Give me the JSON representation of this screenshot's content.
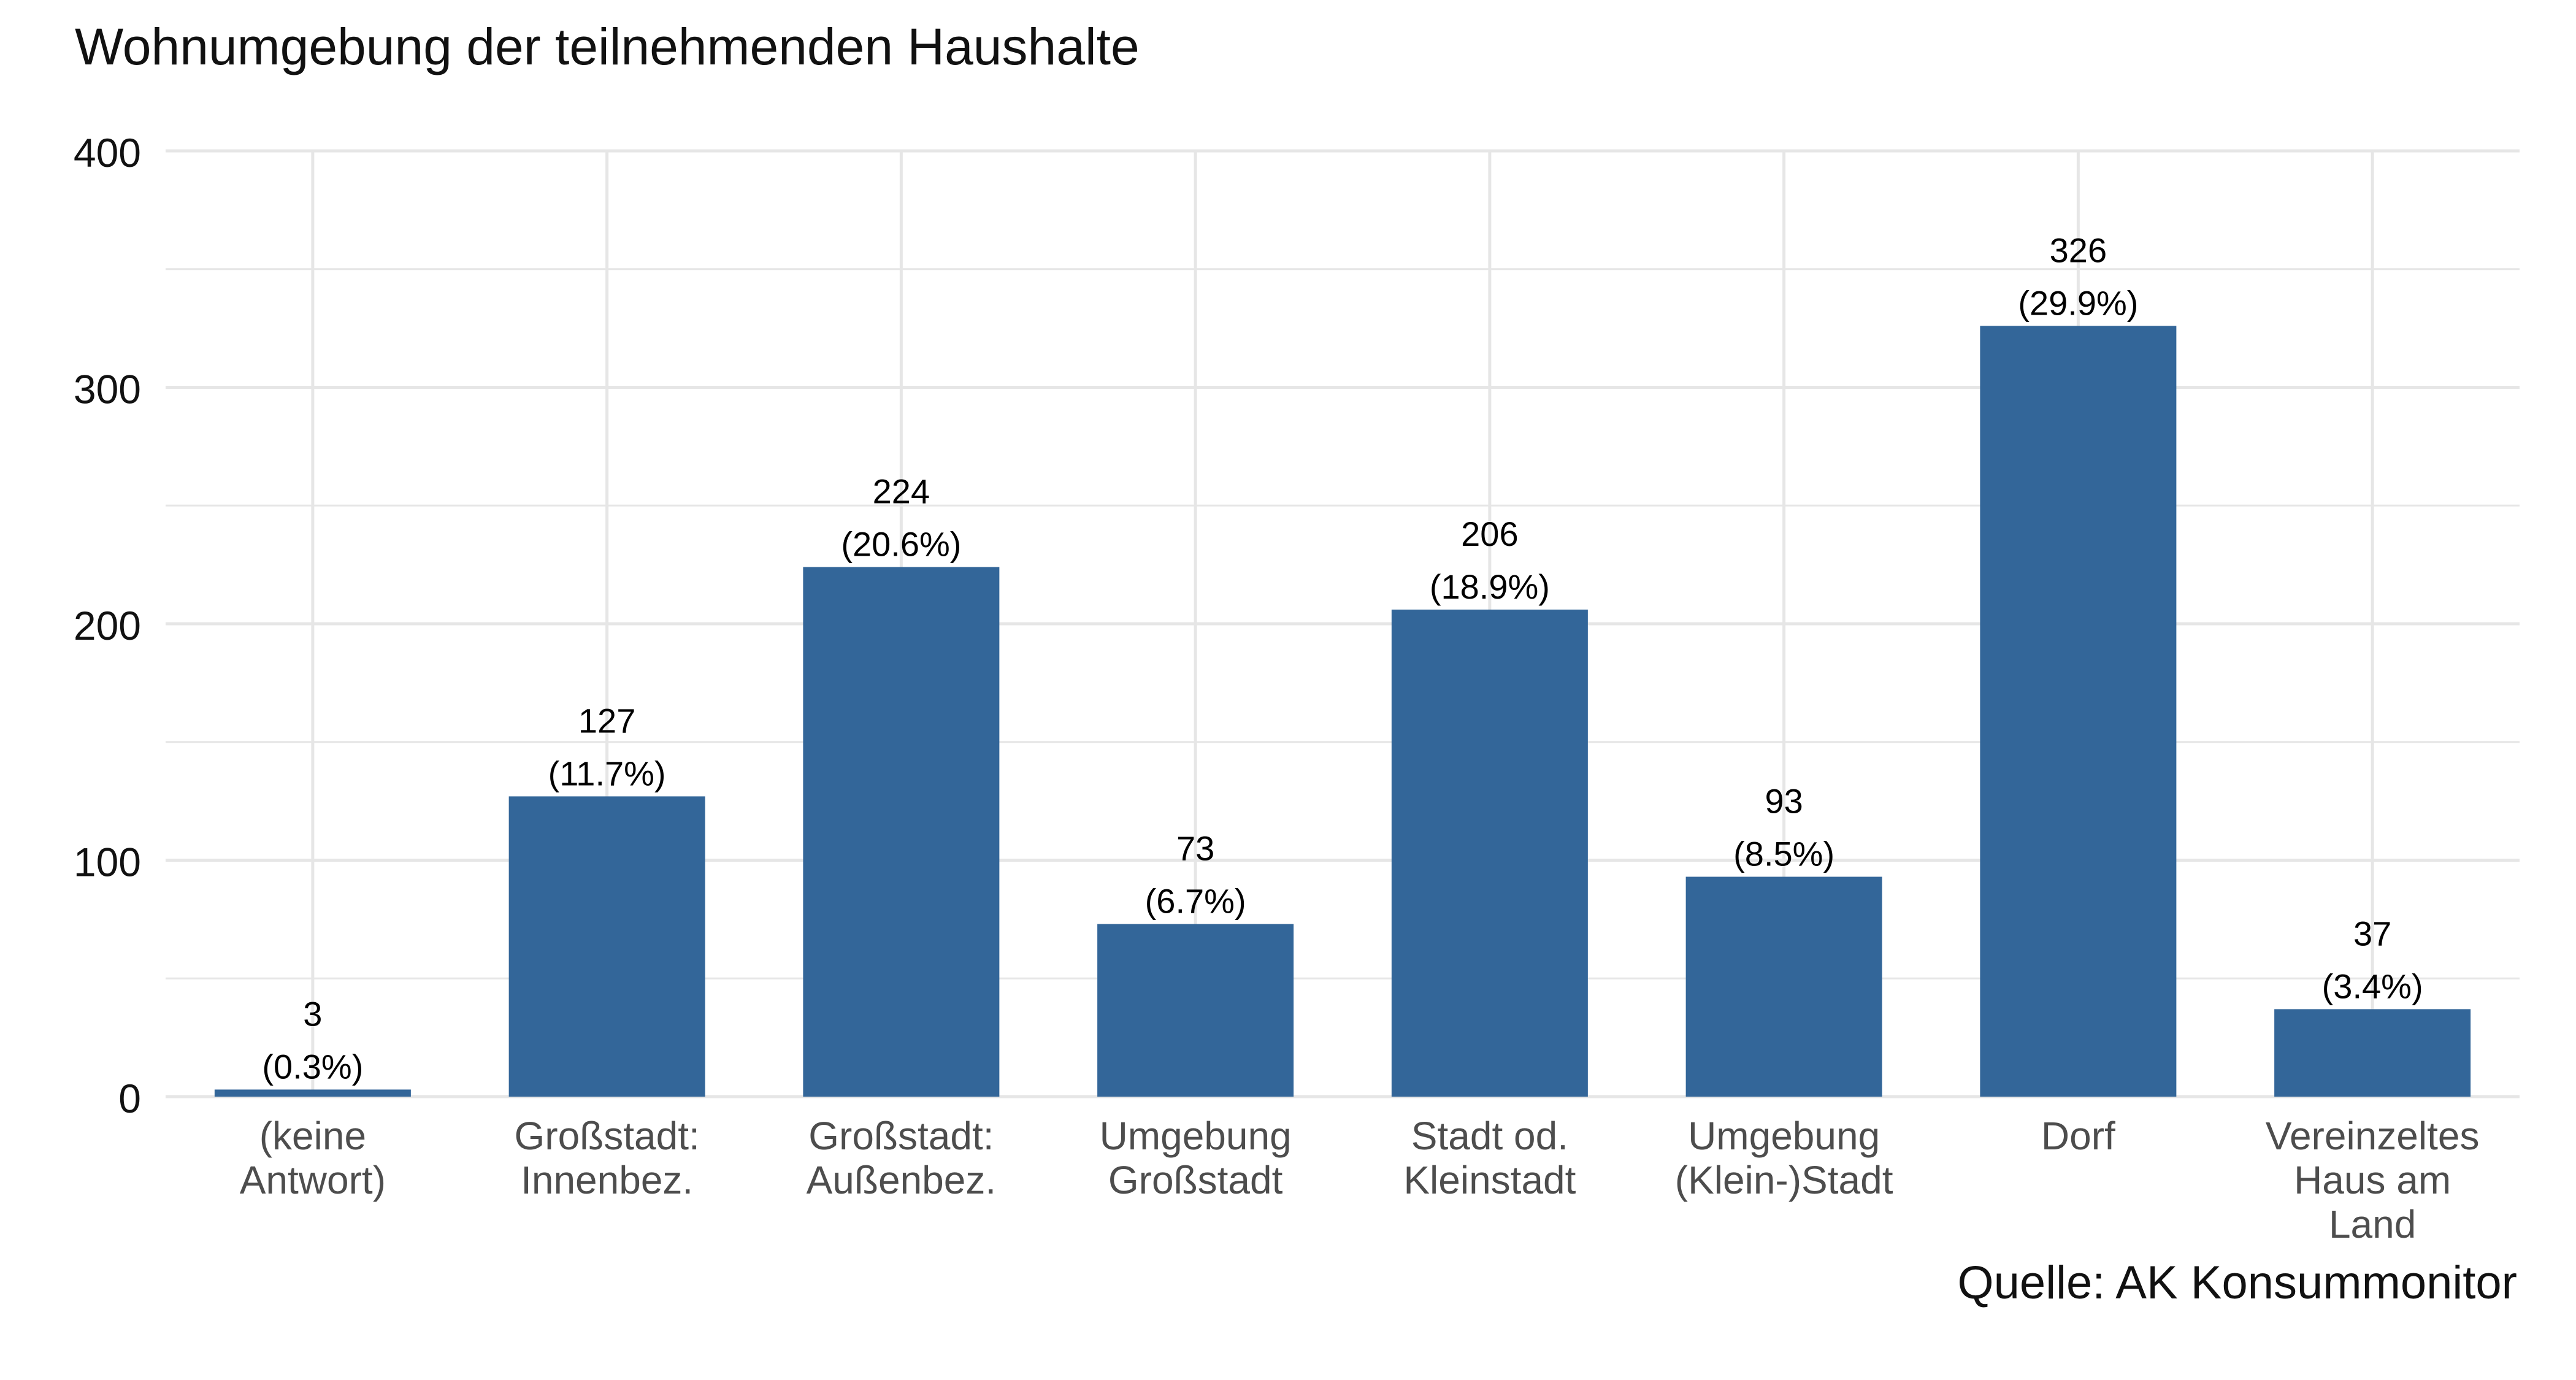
{
  "chart_data": {
    "type": "bar",
    "title": "Wohnumgebung der teilnehmenden Haushalte",
    "caption": "Quelle: AK Konsummonitor",
    "xlabel": "",
    "ylabel": "",
    "ylim": [
      0,
      400
    ],
    "yticks": [
      "0",
      "100",
      "200",
      "300",
      "400"
    ],
    "grid": true,
    "categories": [
      [
        "(keine",
        "Antwort)"
      ],
      [
        "Großstadt:",
        "Innenbez."
      ],
      [
        "Großstadt:",
        "Außenbez."
      ],
      [
        "Umgebung",
        "Großstadt"
      ],
      [
        "Stadt od.",
        "Kleinstadt"
      ],
      [
        "Umgebung",
        "(Klein-)Stadt"
      ],
      [
        "Dorf"
      ],
      [
        "Vereinzeltes",
        "Haus am",
        "Land"
      ]
    ],
    "values": [
      3,
      127,
      224,
      73,
      206,
      93,
      326,
      37
    ],
    "percent_labels": [
      "(0.3%)",
      "(11.7%)",
      "(20.6%)",
      "(6.7%)",
      "(18.9%)",
      "(8.5%)",
      "(29.9%)",
      "(3.4%)"
    ],
    "bar_color": "#336699",
    "grid_color": "#e6e6e6"
  }
}
